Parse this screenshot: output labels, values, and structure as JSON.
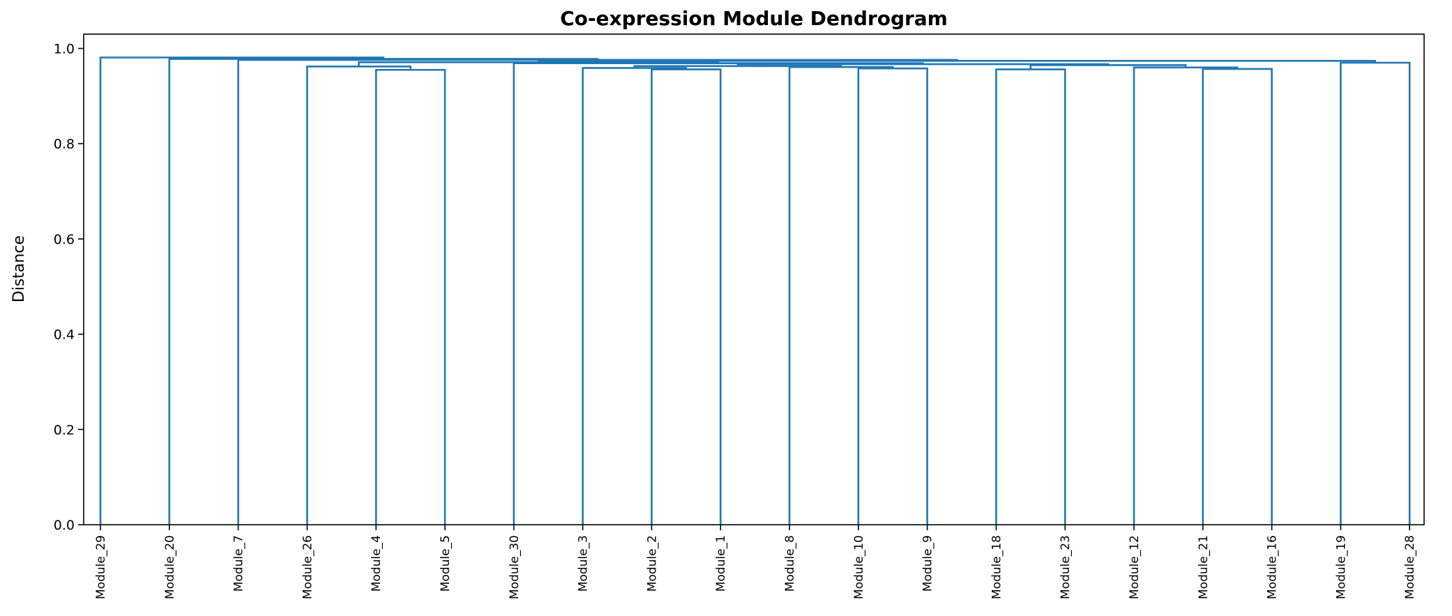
{
  "chart_data": {
    "type": "dendrogram",
    "title": "Co-expression Module Dendrogram",
    "xlabel": "",
    "ylabel": "Distance",
    "ylim": [
      0,
      1.03
    ],
    "yticks": [
      "0.0",
      "0.2",
      "0.4",
      "0.6",
      "0.8",
      "1.0"
    ],
    "grid": false,
    "legend": "none",
    "link_color": "#1f77b4",
    "leaves": [
      "Module_29",
      "Module_20",
      "Module_7",
      "Module_26",
      "Module_4",
      "Module_5",
      "Module_30",
      "Module_3",
      "Module_2",
      "Module_1",
      "Module_8",
      "Module_10",
      "Module_9",
      "Module_18",
      "Module_23",
      "Module_12",
      "Module_21",
      "Module_16",
      "Module_19",
      "Module_28"
    ],
    "merges": [
      {
        "left": "Module_4",
        "right": "Module_5",
        "height": 0.955
      },
      {
        "left": "Module_2",
        "right": "Module_1",
        "height": 0.956
      },
      {
        "left": "Module_18",
        "right": "Module_23",
        "height": 0.956
      },
      {
        "left": "Module_21",
        "right": "Module_16",
        "height": 0.957
      },
      {
        "left": "Module_10",
        "right": "Module_9",
        "height": 0.958
      },
      {
        "left": "Module_3",
        "right": "Module_2|Module_1",
        "height": 0.959
      },
      {
        "left": "Module_12",
        "right": "Module_21|Module_16",
        "height": 0.96
      },
      {
        "left": "Module_8",
        "right": "Module_10|Module_9",
        "height": 0.961
      },
      {
        "left": "Module_26",
        "right": "Module_4|Module_5",
        "height": 0.962
      },
      {
        "left": "Module_3|Module_2|Module_1",
        "right": "Module_8|Module_10|Module_9",
        "height": 0.963
      },
      {
        "left": "Module_18|Module_23",
        "right": "Module_12|Module_21|Module_16",
        "height": 0.965
      },
      {
        "left": "Module_3|Module_2|Module_1|Module_8|Module_10|Module_9",
        "right": "Module_18|Module_23|Module_12|Module_21|Module_16",
        "height": 0.967
      },
      {
        "left": "Module_30",
        "right": "Module_3|Module_2|Module_1|Module_8|Module_10|Module_9|Module_18|Module_23|Module_12|Module_21|Module_16",
        "height": 0.969
      },
      {
        "left": "Module_19",
        "right": "Module_28",
        "height": 0.97
      },
      {
        "left": "Module_26|Module_4|Module_5",
        "right": "Module_30|Module_3|Module_2|Module_1|Module_8|Module_10|Module_9|Module_18|Module_23|Module_12|Module_21|Module_16",
        "height": 0.971
      },
      {
        "left": "Module_26|Module_4|Module_5|Module_30|Module_3|Module_2|Module_1|Module_8|Module_10|Module_9|Module_18|Module_23|Module_12|Module_21|Module_16",
        "right": "Module_19|Module_28",
        "height": 0.974
      },
      {
        "left": "Module_7",
        "right": "Module_26|Module_4|Module_5|Module_30|Module_3|Module_2|Module_1|Module_8|Module_10|Module_9|Module_18|Module_23|Module_12|Module_21|Module_16|Module_19|Module_28",
        "height": 0.976
      },
      {
        "left": "Module_20",
        "right": "Module_7|Module_26|Module_4|Module_5|Module_30|Module_3|Module_2|Module_1|Module_8|Module_10|Module_9|Module_18|Module_23|Module_12|Module_21|Module_16|Module_19|Module_28",
        "height": 0.978
      },
      {
        "left": "Module_29",
        "right": "Module_20|Module_7|Module_26|Module_4|Module_5|Module_30|Module_3|Module_2|Module_1|Module_8|Module_10|Module_9|Module_18|Module_23|Module_12|Module_21|Module_16|Module_19|Module_28",
        "height": 0.981
      }
    ]
  }
}
